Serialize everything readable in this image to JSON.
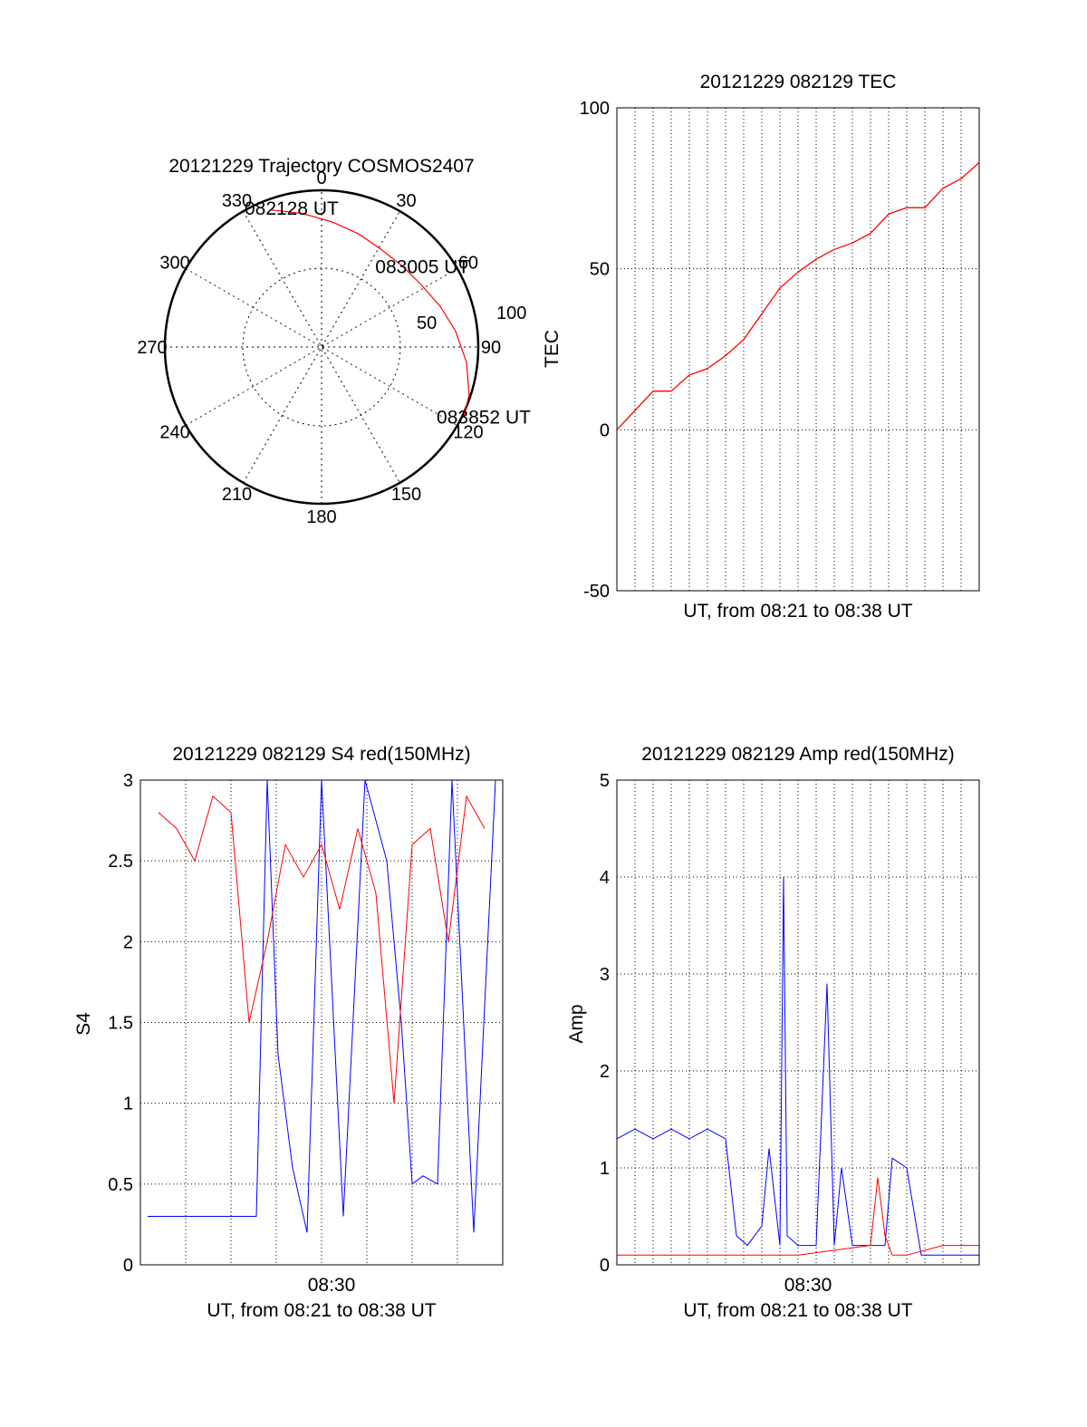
{
  "chart_data": [
    {
      "type": "polar",
      "title": "20121229 Trajectory COSMOS2407",
      "azimuth_labels": [
        "0",
        "30",
        "60",
        "90",
        "120",
        "150",
        "180",
        "210",
        "240",
        "270",
        "300",
        "330"
      ],
      "radial_labels": [
        "50",
        "100"
      ],
      "trajectory": {
        "color": "#ff0000",
        "points": [
          {
            "az": 340,
            "zen": 93
          },
          {
            "az": 352,
            "zen": 86
          },
          {
            "az": 5,
            "zen": 80
          },
          {
            "az": 18,
            "zen": 76
          },
          {
            "az": 31,
            "zen": 73
          },
          {
            "az": 45,
            "zen": 73
          },
          {
            "az": 58,
            "zen": 75
          },
          {
            "az": 71,
            "zen": 80
          },
          {
            "az": 83,
            "zen": 86
          },
          {
            "az": 96,
            "zen": 93
          },
          {
            "az": 108,
            "zen": 99
          },
          {
            "az": 116,
            "zen": 101
          }
        ]
      },
      "annotations": [
        {
          "text": "082128 UT",
          "az": 340,
          "zen": 93
        },
        {
          "text": "083005 UT",
          "az": 45,
          "zen": 73
        },
        {
          "text": "083852 UT",
          "az": 116,
          "zen": 101
        }
      ]
    },
    {
      "type": "line",
      "title": "20121229 082129 TEC",
      "xlabel": "UT, from 08:21 to 08:38 UT",
      "ylabel": "TEC",
      "ylim": [
        -50,
        100
      ],
      "yticks": [
        "100",
        "50",
        "0",
        "-50"
      ],
      "grid": true,
      "series": [
        {
          "color": "#ff0000",
          "x": [
            0,
            0.05,
            0.1,
            0.15,
            0.2,
            0.25,
            0.3,
            0.35,
            0.4,
            0.45,
            0.5,
            0.55,
            0.6,
            0.65,
            0.7,
            0.75,
            0.8,
            0.85,
            0.9,
            0.95,
            1.0
          ],
          "y": [
            0,
            6,
            12,
            12,
            17,
            19,
            23,
            28,
            36,
            44,
            49,
            53,
            56,
            58,
            61,
            67,
            69,
            69,
            75,
            78,
            83
          ]
        }
      ]
    },
    {
      "type": "line",
      "title": "20121229 082129 S4 red(150MHz)",
      "xlabel": "UT, from 08:21 to 08:38 UT",
      "xtick": "08:30",
      "ylabel": "S4",
      "ylim": [
        0,
        3
      ],
      "yticks": [
        "3",
        "2.5",
        "2",
        "1.5",
        "1",
        "0.5",
        "0"
      ],
      "grid": true,
      "series": [
        {
          "color": "#0000ff",
          "x": [
            0.02,
            0.1,
            0.2,
            0.28,
            0.32,
            0.35,
            0.38,
            0.42,
            0.46,
            0.5,
            0.56,
            0.62,
            0.68,
            0.72,
            0.75,
            0.78,
            0.82,
            0.86,
            0.92,
            0.98
          ],
          "y": [
            0.3,
            0.3,
            0.3,
            0.3,
            0.3,
            3.0,
            1.3,
            0.6,
            0.2,
            3.0,
            0.3,
            3.0,
            2.5,
            1.5,
            0.5,
            0.55,
            0.5,
            3.0,
            0.2,
            3.0
          ]
        },
        {
          "color": "#ff0000",
          "x": [
            0.05,
            0.1,
            0.15,
            0.2,
            0.25,
            0.3,
            0.35,
            0.4,
            0.45,
            0.5,
            0.55,
            0.6,
            0.65,
            0.7,
            0.75,
            0.8,
            0.85,
            0.9,
            0.95
          ],
          "y": [
            2.8,
            2.7,
            2.5,
            2.9,
            2.8,
            1.5,
            2.0,
            2.6,
            2.4,
            2.6,
            2.2,
            2.7,
            2.3,
            1.0,
            2.6,
            2.7,
            2.0,
            2.9,
            2.7
          ]
        }
      ]
    },
    {
      "type": "line",
      "title": "20121229 082129 Amp red(150MHz)",
      "xlabel": "UT, from 08:21 to 08:38 UT",
      "xtick": "08:30",
      "ylabel": "Amp",
      "ylim": [
        0,
        5
      ],
      "yticks": [
        "5",
        "4",
        "3",
        "2",
        "1",
        "0"
      ],
      "grid": true,
      "series": [
        {
          "color": "#0000ff",
          "x": [
            0.0,
            0.05,
            0.1,
            0.15,
            0.2,
            0.25,
            0.3,
            0.33,
            0.36,
            0.4,
            0.42,
            0.45,
            0.46,
            0.47,
            0.5,
            0.55,
            0.58,
            0.6,
            0.62,
            0.65,
            0.7,
            0.74,
            0.76,
            0.8,
            0.84,
            0.86,
            0.9,
            0.95,
            1.0
          ],
          "y": [
            1.3,
            1.4,
            1.3,
            1.4,
            1.3,
            1.4,
            1.3,
            0.3,
            0.2,
            0.4,
            1.2,
            0.2,
            4.0,
            0.3,
            0.2,
            0.2,
            2.9,
            0.2,
            1.0,
            0.2,
            0.2,
            0.2,
            1.1,
            1.0,
            0.1,
            0.1,
            0.1,
            0.1,
            0.1
          ]
        },
        {
          "color": "#ff0000",
          "x": [
            0.0,
            0.1,
            0.2,
            0.3,
            0.4,
            0.5,
            0.6,
            0.7,
            0.72,
            0.74,
            0.76,
            0.8,
            0.9,
            1.0
          ],
          "y": [
            0.1,
            0.1,
            0.1,
            0.1,
            0.1,
            0.1,
            0.15,
            0.2,
            0.9,
            0.3,
            0.1,
            0.1,
            0.2,
            0.2
          ]
        }
      ]
    }
  ]
}
